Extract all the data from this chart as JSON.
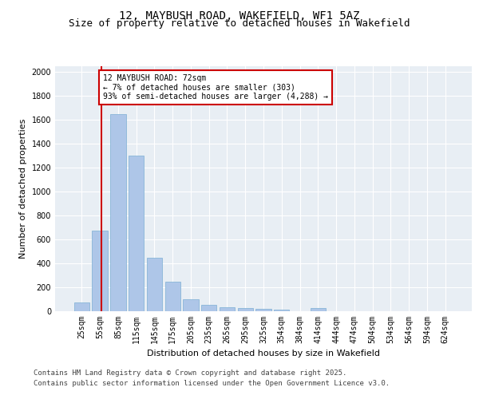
{
  "title_line1": "12, MAYBUSH ROAD, WAKEFIELD, WF1 5AZ",
  "title_line2": "Size of property relative to detached houses in Wakefield",
  "xlabel": "Distribution of detached houses by size in Wakefield",
  "ylabel": "Number of detached properties",
  "categories": [
    "25sqm",
    "55sqm",
    "85sqm",
    "115sqm",
    "145sqm",
    "175sqm",
    "205sqm",
    "235sqm",
    "265sqm",
    "295sqm",
    "325sqm",
    "354sqm",
    "384sqm",
    "414sqm",
    "444sqm",
    "474sqm",
    "504sqm",
    "534sqm",
    "564sqm",
    "594sqm",
    "624sqm"
  ],
  "values": [
    75,
    675,
    1650,
    1300,
    450,
    245,
    100,
    55,
    35,
    25,
    20,
    15,
    0,
    25,
    0,
    0,
    0,
    0,
    0,
    0,
    0
  ],
  "bar_color": "#aec6e8",
  "bar_edge_color": "#7bafd4",
  "annotation_box_text": "12 MAYBUSH ROAD: 72sqm\n← 7% of detached houses are smaller (303)\n93% of semi-detached houses are larger (4,288) →",
  "annotation_box_color": "#ffffff",
  "annotation_box_edge_color": "#cc0000",
  "annotation_line_color": "#cc0000",
  "ylim": [
    0,
    2050
  ],
  "yticks": [
    0,
    200,
    400,
    600,
    800,
    1000,
    1200,
    1400,
    1600,
    1800,
    2000
  ],
  "background_color": "#e8eef4",
  "grid_color": "#ffffff",
  "footer_line1": "Contains HM Land Registry data © Crown copyright and database right 2025.",
  "footer_line2": "Contains public sector information licensed under the Open Government Licence v3.0.",
  "title_fontsize": 10,
  "subtitle_fontsize": 9,
  "axis_label_fontsize": 8,
  "tick_fontsize": 7,
  "annotation_fontsize": 7,
  "footer_fontsize": 6.5
}
